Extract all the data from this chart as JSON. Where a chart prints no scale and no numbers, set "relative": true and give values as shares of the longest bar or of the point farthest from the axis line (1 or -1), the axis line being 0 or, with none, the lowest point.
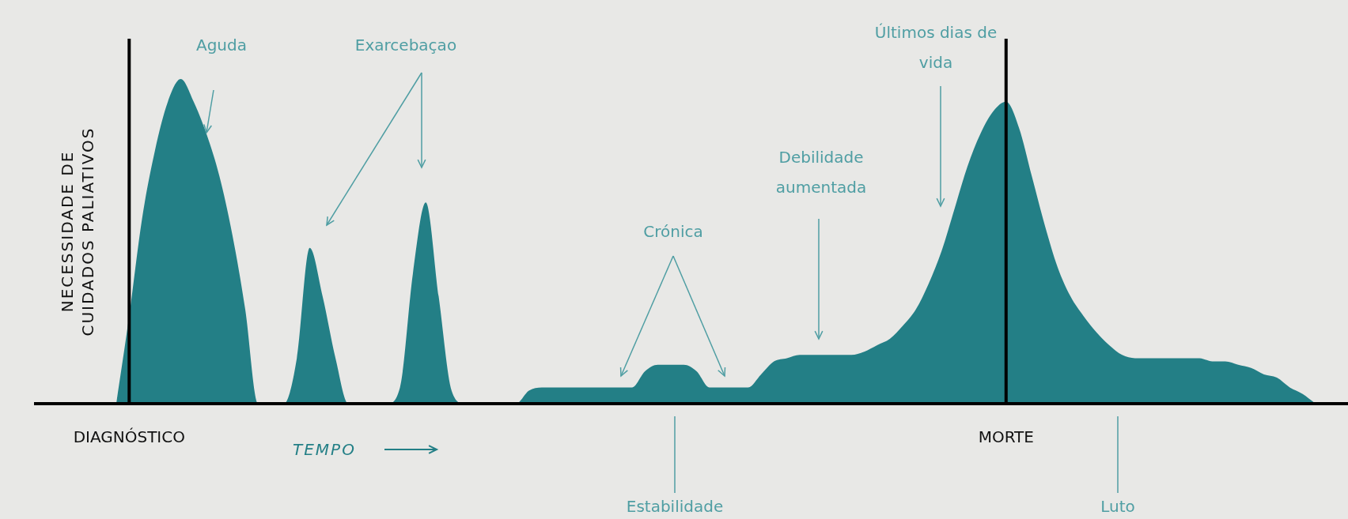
{
  "chart_data": {
    "type": "area",
    "relative": true,
    "ylabel": "NECESSIDADE DE CUIDADOS PALIATIVOS",
    "categories": [
      null,
      "DIAGNÓSTICO",
      null,
      null,
      null,
      null,
      null,
      null,
      null,
      null,
      null,
      null,
      null,
      null,
      null,
      null,
      null,
      null,
      null,
      null,
      null,
      null,
      null,
      null,
      null,
      null,
      null,
      null,
      null,
      null,
      null,
      null,
      null,
      null,
      null,
      null,
      null,
      null,
      null,
      null,
      null,
      null,
      null,
      null,
      null,
      null,
      null,
      null,
      null,
      null,
      null,
      null,
      null,
      null,
      null,
      null,
      null,
      null,
      null,
      null,
      null,
      null,
      null,
      null,
      null,
      null,
      null,
      null,
      null,
      "MORTE",
      null,
      null,
      null,
      null,
      null,
      null,
      null,
      null,
      null,
      null,
      null,
      null,
      null,
      null,
      null,
      null,
      null,
      null,
      null,
      null,
      null,
      null,
      null,
      null
    ],
    "series": [
      {
        "color": "#237f86",
        "values": [
          0,
          0.27,
          0.57,
          0.78,
          0.93,
          1,
          0.93,
          0.83,
          0.7,
          0.52,
          0.29,
          0,
          0,
          0,
          0.14,
          0.48,
          0.33,
          0.14,
          0,
          0,
          0,
          0,
          0.05,
          0.4,
          0.62,
          0.33,
          0.04,
          0,
          0,
          0,
          0,
          0,
          0.04,
          0.05,
          0.05,
          0.05,
          0.05,
          0.05,
          0.05,
          0.05,
          0.05,
          0.1,
          0.12,
          0.12,
          0.12,
          0.1,
          0.05,
          0.05,
          0.05,
          0.05,
          0.09,
          0.13,
          0.14,
          0.15,
          0.15,
          0.15,
          0.15,
          0.15,
          0.16,
          0.18,
          0.2,
          0.24,
          0.29,
          0.37,
          0.47,
          0.6,
          0.73,
          0.83,
          0.9,
          0.93,
          0.85,
          0.7,
          0.55,
          0.42,
          0.33,
          0.27,
          0.22,
          0.18,
          0.15,
          0.14,
          0.14,
          0.14,
          0.14,
          0.14,
          0.14,
          0.13,
          0.13,
          0.12,
          0.11,
          0.09,
          0.08,
          0.05,
          0.03,
          0
        ]
      }
    ],
    "ref_lines": [
      {
        "axis": "x",
        "value": "DIAGNÓSTICO",
        "color": "#000000"
      },
      {
        "axis": "x",
        "value": "MORTE",
        "color": "#000000"
      }
    ],
    "annotations": [
      "Aguda",
      "Exarcebaçao",
      "Crónica",
      "Debilidade aumentada",
      "Últimos dias de vida",
      "Estabilidade",
      "Luto",
      "TEMPO"
    ],
    "legend": false
  }
}
